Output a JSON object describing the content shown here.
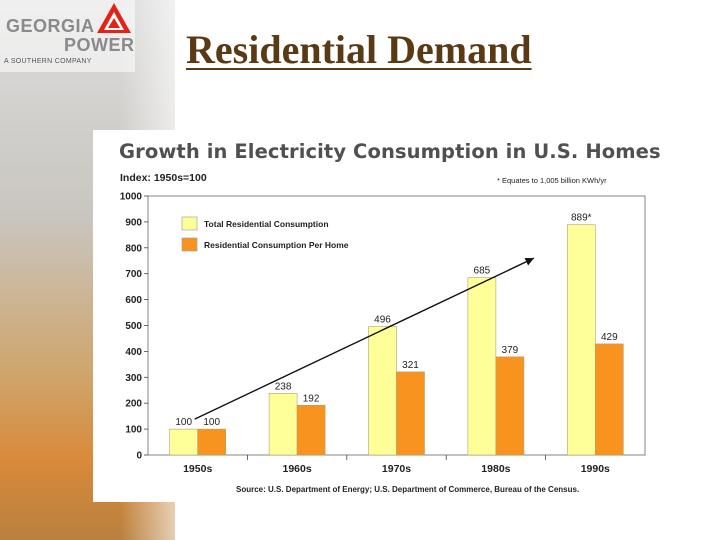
{
  "slide": {
    "title": "Residential Demand"
  },
  "logo": {
    "line1": "GEORGIA",
    "line2": "POWER",
    "tagline": "A SOUTHERN COMPANY"
  },
  "colors": {
    "total_bar": "#ffff99",
    "per_home_bar": "#f7931e",
    "title_color": "#5a3a14"
  },
  "chart_data": {
    "type": "bar",
    "title": "Growth in Electricity Consumption in U.S. Homes",
    "ylabel": "Index: 1950s=100",
    "note": "* Equates to 1,005 billion KWh/yr",
    "source": "Source: U.S. Department of Energy; U.S. Department of Commerce, Bureau of the Census.",
    "categories": [
      "1950s",
      "1960s",
      "1970s",
      "1980s",
      "1990s"
    ],
    "series": [
      {
        "name": "Total Residential Consumption",
        "values": [
          100,
          238,
          496,
          685,
          889
        ],
        "labels": [
          "100",
          "238",
          "496",
          "685",
          "889*"
        ]
      },
      {
        "name": "Residential Consumption Per Home",
        "values": [
          100,
          192,
          321,
          379,
          429
        ],
        "labels": [
          "100",
          "192",
          "321",
          "379",
          "429"
        ]
      }
    ],
    "ylim": [
      0,
      1000
    ],
    "yticks": [
      "0",
      "100",
      "200",
      "300",
      "400",
      "500",
      "600",
      "700",
      "800",
      "900",
      "1000"
    ],
    "legend_position": "top-left",
    "trend_arrow": {
      "from": {
        "category": "1950s",
        "value": 100
      },
      "to": {
        "category": "1980s",
        "value": 760
      }
    }
  }
}
